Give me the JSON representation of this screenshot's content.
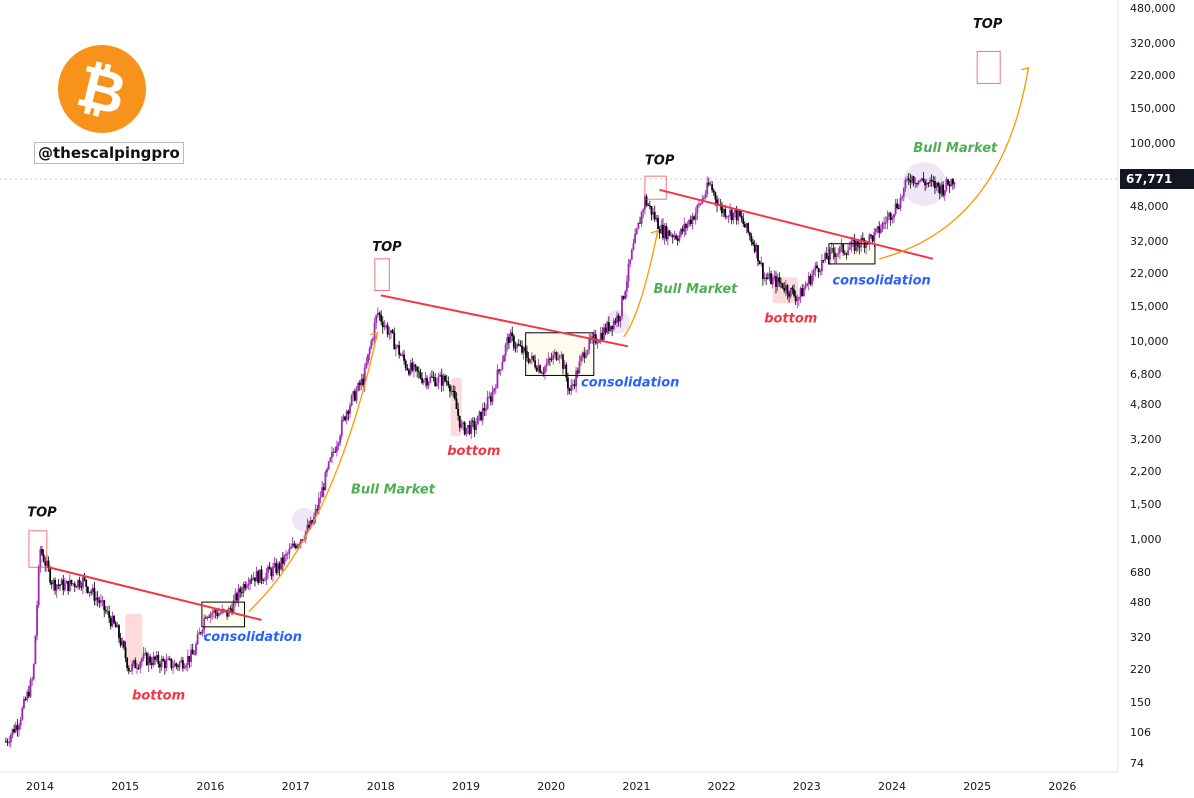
{
  "branding": {
    "logo_icon": "bitcoin-logo-icon",
    "logo_glyph": "₿",
    "handle": "@thescalpingpro",
    "brand_color": "#f7931a"
  },
  "price_label": "67,771",
  "colors": {
    "candle": "#9c27b0",
    "candle_down": "#000000",
    "trendline": "#f23645",
    "arc": "#ff9800",
    "bull": "#4caf50",
    "bottom": "#f23645",
    "consolidation": "#2962ff"
  },
  "chart_data": {
    "type": "line",
    "yscale": "log",
    "ylim": [
      74,
      480000
    ],
    "xlim": [
      2013.55,
      2026.75
    ],
    "x_ticks": [
      "2014",
      "2015",
      "2016",
      "2017",
      "2018",
      "2019",
      "2020",
      "2021",
      "2022",
      "2023",
      "2024",
      "2025",
      "2026"
    ],
    "y_ticks": [
      "480,000",
      "320,000",
      "220,000",
      "150,000",
      "100,000",
      "48,000",
      "32,000",
      "22,000",
      "15,000",
      "10,000",
      "6,800",
      "4,800",
      "3,200",
      "2,200",
      "1,500",
      "1,000",
      "680",
      "480",
      "320",
      "220",
      "150",
      "106",
      "74"
    ],
    "series": [
      {
        "x": [
          2013.6,
          2013.75,
          2013.92,
          2014.0,
          2014.15,
          2014.3,
          2014.5,
          2014.7,
          2014.9,
          2015.05,
          2015.2,
          2015.4,
          2015.6,
          2015.8,
          2015.95,
          2016.2,
          2016.45,
          2016.6,
          2016.8,
          2017.0,
          2017.2,
          2017.4,
          2017.6,
          2017.8,
          2017.96,
          2018.1,
          2018.3,
          2018.5,
          2018.8,
          2018.95,
          2019.1,
          2019.3,
          2019.5,
          2019.7,
          2019.9,
          2020.1,
          2020.22,
          2020.4,
          2020.6,
          2020.8,
          2020.95,
          2021.1,
          2021.3,
          2021.5,
          2021.7,
          2021.86,
          2022.0,
          2022.2,
          2022.4,
          2022.5,
          2022.7,
          2022.9,
          2023.1,
          2023.3,
          2023.5,
          2023.8,
          2023.95,
          2024.1,
          2024.2,
          2024.4,
          2024.6,
          2024.75
        ],
        "y": [
          95,
          120,
          200,
          900,
          600,
          580,
          620,
          480,
          350,
          220,
          250,
          240,
          230,
          260,
          430,
          420,
          650,
          650,
          720,
          950,
          1200,
          2400,
          4500,
          6500,
          14000,
          11000,
          7500,
          6500,
          6300,
          3600,
          3700,
          5300,
          10500,
          8500,
          7200,
          9000,
          5500,
          9200,
          11000,
          13500,
          28000,
          52000,
          36000,
          34000,
          45000,
          62000,
          46000,
          43000,
          30000,
          21000,
          19500,
          16500,
          23000,
          28000,
          29500,
          34000,
          42000,
          52000,
          68000,
          63000,
          59000,
          67771
        ]
      }
    ],
    "annotations": {
      "top": [
        "TOP",
        "TOP",
        "TOP",
        "TOP"
      ],
      "bull": [
        "Bull Market",
        "Bull Market",
        "Bull Market"
      ],
      "bottom": [
        "bottom",
        "bottom",
        "bottom"
      ],
      "consolidation": [
        "consolidation",
        "consolidation",
        "consolidation"
      ]
    }
  }
}
